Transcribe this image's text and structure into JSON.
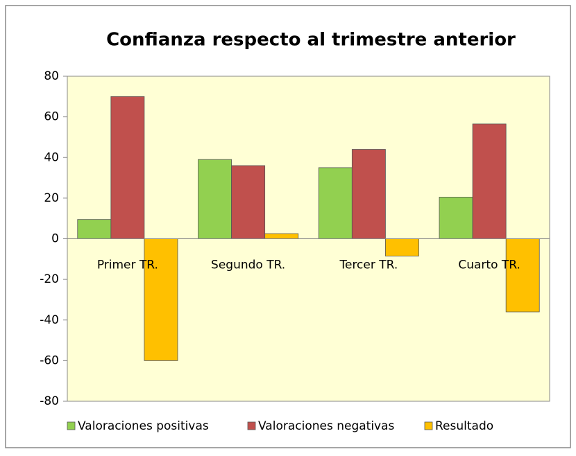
{
  "chart_data": {
    "type": "bar",
    "title": "Confianza respecto al trimestre anterior",
    "categories": [
      "Primer TR.",
      "Segundo TR.",
      "Tercer TR.",
      "Cuarto TR."
    ],
    "series": [
      {
        "name": "Valoraciones positivas",
        "color": "#92d050",
        "values": [
          9.5,
          39,
          35,
          20.5
        ]
      },
      {
        "name": "Valoraciones negativas",
        "color": "#c0504d",
        "values": [
          70,
          36,
          44,
          56.5
        ]
      },
      {
        "name": "Resultado",
        "color": "#ffc000",
        "values": [
          -60,
          2.5,
          -8.5,
          -36
        ]
      }
    ],
    "ylim": [
      -80,
      80
    ],
    "yticks": [
      -80,
      -60,
      -40,
      -20,
      0,
      20,
      40,
      60,
      80
    ],
    "grid": false,
    "legend": "bottom"
  }
}
